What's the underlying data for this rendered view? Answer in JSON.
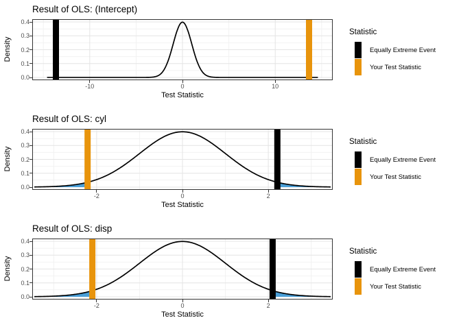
{
  "page": {
    "background": "#ffffff"
  },
  "colors": {
    "equally_extreme_event": "#000000",
    "your_test_statistic": "#E8940C",
    "tail_fill": "#4A9FD8",
    "curve": "#000000",
    "grid_major": "#E4E4E4",
    "grid_minor": "#F2F2F2",
    "panel_border": "#333333",
    "axis_text": "#4D4D4D",
    "title_text": "#000000"
  },
  "legend": {
    "title": "Statistic",
    "position": "right",
    "items": [
      {
        "label": "Equally Extreme Event",
        "color_key": "equally_extreme_event"
      },
      {
        "label": "Your Test Statistic",
        "color_key": "your_test_statistic"
      }
    ]
  },
  "chart_data": [
    {
      "type": "area",
      "title": "Result of OLS: (Intercept)",
      "xlabel": "Test Statistic",
      "ylabel": "Density",
      "distribution": "normal density, mean 0, sd 1, peak 0.4 at x=0",
      "xlim": [
        -16.2,
        16.2
      ],
      "ylim": [
        -0.02,
        0.42
      ],
      "xticks": [
        -10,
        0,
        10
      ],
      "xtick_labels": [
        "-10",
        "0",
        "10"
      ],
      "xminor": [
        -15,
        -5,
        5,
        15
      ],
      "yticks": [
        0,
        0.1,
        0.2,
        0.3,
        0.4
      ],
      "ytick_labels": [
        "0.0",
        "0.1",
        "0.2",
        "0.3",
        "0.4"
      ],
      "yminor": [
        0.05,
        0.15,
        0.25,
        0.35
      ],
      "curve_range": [
        -14.6,
        14.6
      ],
      "your_test_statistic": 13.65,
      "equally_extreme_event": -13.65,
      "shaded_tails": false,
      "grid": true
    },
    {
      "type": "area",
      "title": "Result of OLS: cyl",
      "xlabel": "Test Statistic",
      "ylabel": "Density",
      "distribution": "normal density, mean 0, sd 1, peak 0.4 at x=0",
      "xlim": [
        -3.5,
        3.5
      ],
      "ylim": [
        -0.02,
        0.42
      ],
      "xticks": [
        -2,
        0,
        2
      ],
      "xtick_labels": [
        "-2",
        "0",
        "2"
      ],
      "xminor": [
        -3,
        -1,
        1,
        3
      ],
      "yticks": [
        0,
        0.1,
        0.2,
        0.3,
        0.4
      ],
      "ytick_labels": [
        "0.0",
        "0.1",
        "0.2",
        "0.3",
        "0.4"
      ],
      "yminor": [
        0.05,
        0.15,
        0.25,
        0.35
      ],
      "curve_range": [
        -3.45,
        3.45
      ],
      "your_test_statistic": -2.21,
      "equally_extreme_event": 2.21,
      "shaded_tails": true,
      "grid": true
    },
    {
      "type": "area",
      "title": "Result of OLS: disp",
      "xlabel": "Test Statistic",
      "ylabel": "Density",
      "distribution": "normal density, mean 0, sd 1, peak 0.4 at x=0",
      "xlim": [
        -3.5,
        3.5
      ],
      "xticks": [
        -2,
        0,
        2
      ],
      "xtick_labels": [
        "-2",
        "0",
        "2"
      ],
      "xminor": [
        -3,
        -1,
        1,
        3
      ],
      "ylim": [
        -0.02,
        0.42
      ],
      "yticks": [
        0,
        0.1,
        0.2,
        0.3,
        0.4
      ],
      "ytick_labels": [
        "0.0",
        "0.1",
        "0.2",
        "0.3",
        "0.4"
      ],
      "yminor": [
        0.05,
        0.15,
        0.25,
        0.35
      ],
      "curve_range": [
        -3.45,
        3.45
      ],
      "your_test_statistic": -2.1,
      "equally_extreme_event": 2.1,
      "shaded_tails": true,
      "grid": true
    }
  ]
}
